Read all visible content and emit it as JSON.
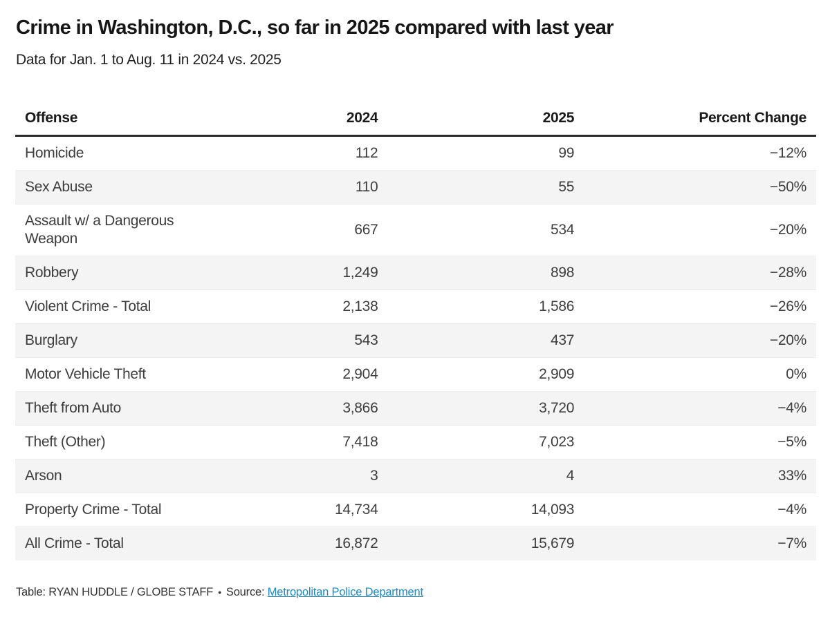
{
  "header": {
    "title": "Crime in Washington, D.C., so far in 2025 compared with last year",
    "subtitle": "Data for Jan. 1 to Aug. 11 in 2024 vs. 2025"
  },
  "table": {
    "columns": [
      "Offense",
      "2024",
      "2025",
      "Percent Change"
    ],
    "rows": [
      {
        "offense": "Homicide",
        "v2024": "112",
        "v2025": "99",
        "pct": "−12%"
      },
      {
        "offense": "Sex Abuse",
        "v2024": "110",
        "v2025": "55",
        "pct": "−50%"
      },
      {
        "offense": "Assault w/ a Dangerous Weapon",
        "v2024": "667",
        "v2025": "534",
        "pct": "−20%"
      },
      {
        "offense": "Robbery",
        "v2024": "1,249",
        "v2025": "898",
        "pct": "−28%"
      },
      {
        "offense": "Violent Crime - Total",
        "v2024": "2,138",
        "v2025": "1,586",
        "pct": "−26%"
      },
      {
        "offense": "Burglary",
        "v2024": "543",
        "v2025": "437",
        "pct": "−20%"
      },
      {
        "offense": "Motor Vehicle Theft",
        "v2024": "2,904",
        "v2025": "2,909",
        "pct": "0%"
      },
      {
        "offense": "Theft from Auto",
        "v2024": "3,866",
        "v2025": "3,720",
        "pct": "−4%"
      },
      {
        "offense": "Theft (Other)",
        "v2024": "7,418",
        "v2025": "7,023",
        "pct": "−5%"
      },
      {
        "offense": "Arson",
        "v2024": "3",
        "v2025": "4",
        "pct": "33%"
      },
      {
        "offense": "Property Crime - Total",
        "v2024": "14,734",
        "v2025": "14,093",
        "pct": "−4%"
      },
      {
        "offense": "All Crime - Total",
        "v2024": "16,872",
        "v2025": "15,679",
        "pct": "−7%"
      }
    ]
  },
  "footer": {
    "credit": "Table: RYAN HUDDLE / GLOBE STAFF",
    "separator": "•",
    "source_label": "Source:",
    "source_link": "Metropolitan Police Department"
  },
  "colors": {
    "title_text": "#161616",
    "body_text": "#3d3d3d",
    "zebra_stripe": "#f4f4f4",
    "header_rule": "#2b2b2b",
    "link_blue": "#1d8bc4"
  },
  "chart_data": {
    "type": "table",
    "title": "Crime in Washington, D.C., so far in 2025 compared with last year",
    "subtitle": "Data for Jan. 1 to Aug. 11 in 2024 vs. 2025",
    "columns": [
      "Offense",
      "2024",
      "2025",
      "Percent Change"
    ],
    "rows": [
      [
        "Homicide",
        112,
        99,
        "−12%"
      ],
      [
        "Sex Abuse",
        110,
        55,
        "−50%"
      ],
      [
        "Assault w/ a Dangerous Weapon",
        667,
        534,
        "−20%"
      ],
      [
        "Robbery",
        1249,
        898,
        "−28%"
      ],
      [
        "Violent Crime - Total",
        2138,
        1586,
        "−26%"
      ],
      [
        "Burglary",
        543,
        437,
        "−20%"
      ],
      [
        "Motor Vehicle Theft",
        2904,
        2909,
        "0%"
      ],
      [
        "Theft from Auto",
        3866,
        3720,
        "−4%"
      ],
      [
        "Theft (Other)",
        7418,
        7023,
        "−5%"
      ],
      [
        "Arson",
        3,
        4,
        "33%"
      ],
      [
        "Property Crime - Total",
        14734,
        14093,
        "−4%"
      ],
      [
        "All Crime - Total",
        16872,
        15679,
        "−7%"
      ]
    ],
    "source": "Metropolitan Police Department",
    "credit": "RYAN HUDDLE / GLOBE STAFF"
  }
}
